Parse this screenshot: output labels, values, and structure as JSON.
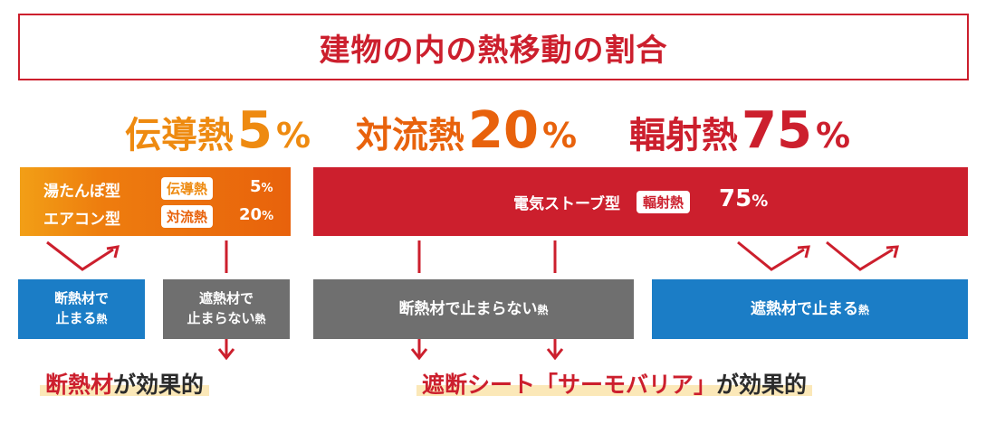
{
  "title": "建物の内の熱移動の割合",
  "headline": [
    {
      "name": "伝導熱",
      "value": "5",
      "unit": "%",
      "color": "#ee8a10"
    },
    {
      "name": "対流熱",
      "value": "20",
      "unit": "%",
      "color": "#e8620c"
    },
    {
      "name": "輻射熱",
      "value": "75",
      "unit": "%",
      "color": "#cc1f2d"
    }
  ],
  "left_box": {
    "rows": [
      {
        "label": "湯たんぽ型",
        "tag": "伝導熱",
        "value": "5",
        "unit": "%"
      },
      {
        "label": "エアコン型",
        "tag": "対流熱",
        "value": "20",
        "unit": "%"
      }
    ]
  },
  "right_box": {
    "label": "電気ストーブ型",
    "tag": "輻射熱",
    "value": "75",
    "unit": "%"
  },
  "result_boxes": {
    "blue_a": {
      "line1": "断熱材で",
      "line2": "止まる",
      "suffix": "熱"
    },
    "grey_a": {
      "line1": "遮熱材で",
      "line2": "止まらない",
      "suffix": "熱"
    },
    "grey_b": {
      "text": "断熱材で止まらない",
      "suffix": "熱"
    },
    "blue_b": {
      "text": "遮熱材で止まる",
      "suffix": "熱"
    }
  },
  "bottom": {
    "left_highlight": "断熱材",
    "left_rest": "が効果的",
    "right_highlight": "遮断シート「サーモバリア」",
    "right_rest": "が効果的"
  },
  "colors": {
    "red": "#cc1f2d",
    "orange": "#e8620c",
    "yellow_orange": "#f29f16",
    "blue": "#1b7dc6",
    "grey": "#6f6f6f"
  }
}
